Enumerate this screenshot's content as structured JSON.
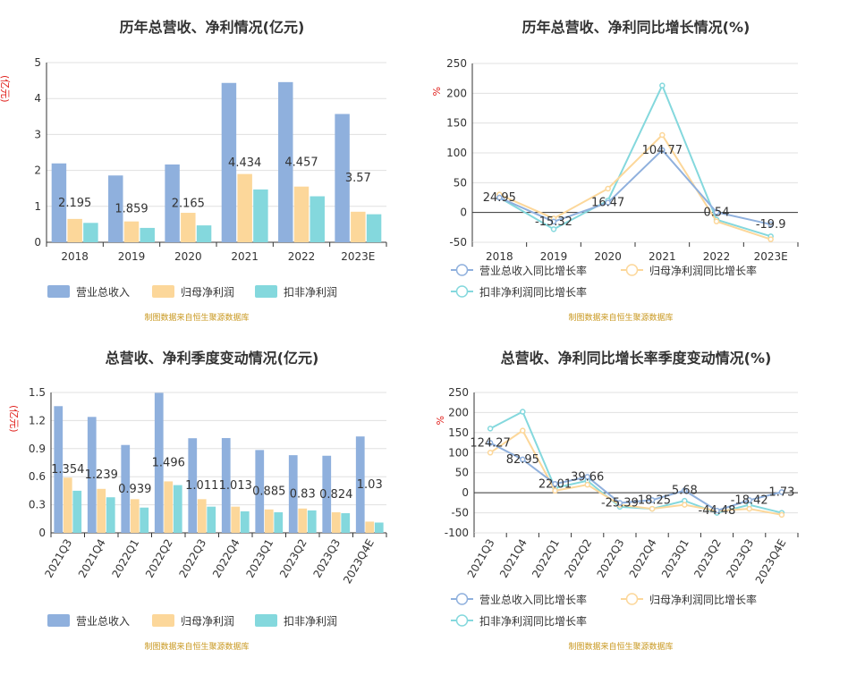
{
  "source_note": "制图数据来自恒生聚源数据库",
  "colors": {
    "blue": "#8FB0DD",
    "yellow": "#FCD79A",
    "teal": "#84D8DD",
    "grid": "#E0E0E0",
    "axis": "#333333",
    "title": "#333333",
    "unit": "#E0201C",
    "note": "#C8971E"
  },
  "chart_data": [
    {
      "type": "bar",
      "title": "历年总营收、净利情况(亿元)",
      "ylabel": "(亿元)",
      "ylim": [
        0,
        5
      ],
      "yticks": [
        0,
        1,
        2,
        3,
        4,
        5
      ],
      "categories": [
        "2018",
        "2019",
        "2020",
        "2021",
        "2022",
        "2023E"
      ],
      "series": [
        {
          "name": "营业总收入",
          "values": [
            2.195,
            1.859,
            2.165,
            4.434,
            4.457,
            3.57
          ],
          "labels": [
            "2.195",
            "1.859",
            "2.165",
            "4.434",
            "4.457",
            "3.57"
          ]
        },
        {
          "name": "归母净利润",
          "values": [
            0.65,
            0.58,
            0.82,
            1.9,
            1.55,
            0.85
          ]
        },
        {
          "name": "扣非净利润",
          "values": [
            0.54,
            0.4,
            0.47,
            1.47,
            1.28,
            0.78
          ]
        }
      ]
    },
    {
      "type": "line",
      "title": "历年总营收、净利同比增长情况(%)",
      "ylabel": "%",
      "ylim": [
        -50,
        250
      ],
      "yticks": [
        -50,
        0,
        50,
        100,
        150,
        200,
        250
      ],
      "categories": [
        "2018",
        "2019",
        "2020",
        "2021",
        "2022",
        "2023E"
      ],
      "series": [
        {
          "name": "营业总收入同比增长率",
          "values": [
            24.95,
            -15.32,
            16.47,
            104.77,
            0.54,
            -19.9
          ],
          "labels": [
            "24.95",
            "-15.32",
            "16.47",
            "104.77",
            "0.54",
            "-19.9"
          ]
        },
        {
          "name": "归母净利润同比增长率",
          "values": [
            30,
            -10,
            40,
            130,
            -15,
            -45
          ]
        },
        {
          "name": "扣非净利润同比增长率",
          "values": [
            25,
            -28,
            20,
            213,
            -12,
            -40
          ]
        }
      ]
    },
    {
      "type": "bar",
      "title": "总营收、净利季度变动情况(亿元)",
      "ylabel": "(亿元)",
      "ylim": [
        0,
        1.5
      ],
      "yticks": [
        0,
        0.3,
        0.6,
        0.9,
        1.2,
        1.5
      ],
      "categories": [
        "2021Q3",
        "2021Q4",
        "2022Q1",
        "2022Q2",
        "2022Q3",
        "2022Q4",
        "2023Q1",
        "2023Q2",
        "2023Q3",
        "2023Q4E"
      ],
      "series": [
        {
          "name": "营业总收入",
          "values": [
            1.354,
            1.239,
            0.939,
            1.496,
            1.011,
            1.013,
            0.885,
            0.83,
            0.824,
            1.03
          ],
          "labels": [
            "1.354",
            "1.239",
            "0.939",
            "1.496",
            "1.011",
            "1.013",
            "0.885",
            "0.83",
            "0.824",
            "1.03"
          ]
        },
        {
          "name": "归母净利润",
          "values": [
            0.59,
            0.47,
            0.36,
            0.55,
            0.36,
            0.28,
            0.25,
            0.26,
            0.22,
            0.12
          ]
        },
        {
          "name": "扣非净利润",
          "values": [
            0.45,
            0.38,
            0.27,
            0.51,
            0.28,
            0.23,
            0.22,
            0.24,
            0.21,
            0.11
          ]
        }
      ]
    },
    {
      "type": "line",
      "title": "总营收、净利同比增长率季度变动情况(%)",
      "ylabel": "%",
      "ylim": [
        -100,
        250
      ],
      "yticks": [
        -100,
        -50,
        0,
        50,
        100,
        150,
        200,
        250
      ],
      "categories": [
        "2021Q3",
        "2021Q4",
        "2022Q1",
        "2022Q2",
        "2022Q3",
        "2022Q4",
        "2023Q1",
        "2023Q2",
        "2023Q3",
        "2023Q4E"
      ],
      "series": [
        {
          "name": "营业总收入同比增长率",
          "values": [
            124.27,
            82.95,
            22.01,
            39.66,
            -25.39,
            -18.25,
            5.68,
            -44.48,
            -18.42,
            1.73
          ],
          "labels": [
            "124.27",
            "82.95",
            "22.01",
            "39.66",
            "-25.39",
            "-18.25",
            "5.68",
            "-44.48",
            "-18.42",
            "1.73"
          ]
        },
        {
          "name": "归母净利润同比增长率",
          "values": [
            100,
            155,
            5,
            20,
            -30,
            -40,
            -30,
            -45,
            -40,
            -55
          ]
        },
        {
          "name": "扣非净利润同比增长率",
          "values": [
            160,
            202,
            12,
            30,
            -35,
            -40,
            -20,
            -50,
            -30,
            -50
          ]
        }
      ]
    }
  ]
}
